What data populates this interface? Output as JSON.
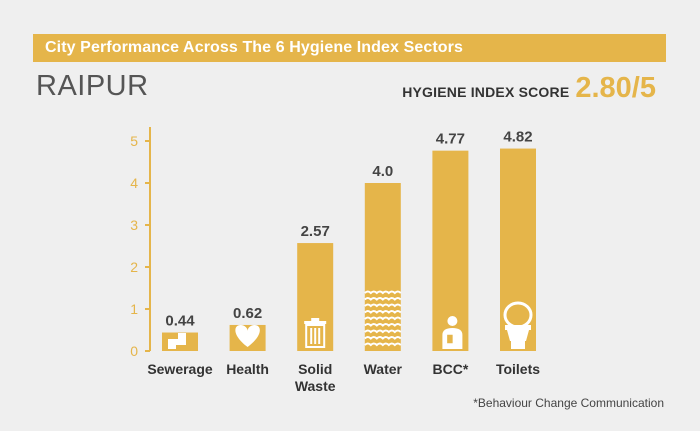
{
  "header": {
    "title": "City Performance Across The 6 Hygiene Index Sectors",
    "city": "RAIPUR",
    "score_label": "HYGIENE INDEX SCORE",
    "score_value": "2.80/5"
  },
  "footnote": "*Behaviour Change Communication",
  "colors": {
    "accent": "#e5b54a",
    "background": "#efefef",
    "text_dark": "#444444"
  },
  "chart_data": {
    "type": "bar",
    "title": "City Performance Across The 6 Hygiene Index Sectors",
    "xlabel": "",
    "ylabel": "",
    "ylim": [
      0,
      5
    ],
    "yticks": [
      "0",
      "1",
      "2",
      "3",
      "4",
      "5"
    ],
    "categories": [
      {
        "label": [
          "Sewerage"
        ],
        "icon": "sewer-pipe-icon"
      },
      {
        "label": [
          "Health"
        ],
        "icon": "heart-icon"
      },
      {
        "label": [
          "Solid",
          "Waste"
        ],
        "icon": "trash-bin-icon"
      },
      {
        "label": [
          "Water"
        ],
        "icon": "water-waves-icon"
      },
      {
        "label": [
          "BCC*"
        ],
        "icon": "person-speaking-icon"
      },
      {
        "label": [
          "Toilets"
        ],
        "icon": "toilet-icon"
      }
    ],
    "values": [
      0.44,
      0.62,
      2.57,
      4.0,
      4.77,
      4.82
    ],
    "value_labels": [
      "0.44",
      "0.62",
      "2.57",
      "4.0",
      "4.77",
      "4.82"
    ],
    "grid": false,
    "legend": "none"
  }
}
